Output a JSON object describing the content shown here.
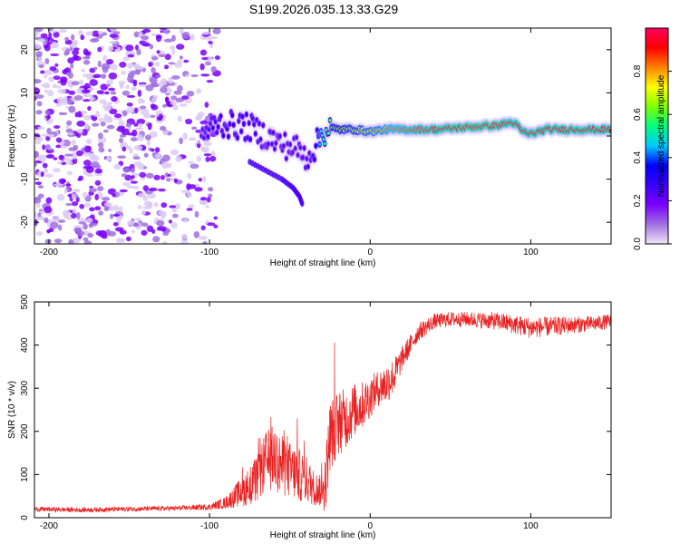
{
  "figure_title": "S199.2026.035.13.33.G29",
  "colors": {
    "snr_line": "#e82020",
    "frame": "#000000",
    "colorbar_stops": [
      "#f0e6f8",
      "#a070e0",
      "#7a00ff",
      "#3a00ff",
      "#0000ff",
      "#00c8ff",
      "#00ff80",
      "#80ff00",
      "#ffff00",
      "#ff8000",
      "#ff0000",
      "#ff0060"
    ]
  },
  "chart_data": [
    {
      "type": "heatmap",
      "name": "spectrogram",
      "title": "",
      "xlabel": "Height of straight line (km)",
      "ylabel": "Frequency (Hz)",
      "xlim": [
        -209,
        150
      ],
      "ylim": [
        -25,
        25
      ],
      "x_ticks": [
        -200,
        -100,
        0,
        100
      ],
      "x_tick_labels": [
        "-200",
        "-100",
        "0",
        "100"
      ],
      "y_ticks": [
        -20,
        -10,
        0,
        10,
        20
      ],
      "y_tick_labels": [
        "-20",
        "-10",
        "0",
        "10",
        "20"
      ],
      "colorbar": {
        "label": "Normalized spectral amplitude",
        "range": [
          0,
          1
        ],
        "ticks": [
          0.0,
          0.2,
          0.4,
          0.6,
          0.8
        ],
        "tick_labels": [
          "0.0",
          "0.2",
          "0.4",
          "0.6",
          "0.8"
        ]
      },
      "ridge": {
        "description": "dominant frequency track",
        "x": [
          -105,
          -95,
          -85,
          -75,
          -65,
          -55,
          -45,
          -40,
          -35,
          -30,
          -25,
          -20,
          -10,
          0,
          10,
          20,
          40,
          60,
          80,
          85,
          90,
          95,
          100,
          110,
          130,
          150
        ],
        "freq": [
          0.0,
          3.0,
          2.5,
          2.0,
          0.0,
          -2.0,
          -3.0,
          -5.0,
          -3.0,
          0.5,
          2.0,
          1.5,
          1.5,
          1.0,
          1.5,
          1.5,
          1.5,
          2.0,
          2.5,
          3.0,
          3.0,
          1.0,
          0.5,
          1.5,
          1.5,
          1.5
        ],
        "amplitude": [
          0.25,
          0.3,
          0.3,
          0.3,
          0.25,
          0.25,
          0.22,
          0.25,
          0.3,
          0.5,
          0.6,
          0.65,
          0.7,
          0.75,
          0.8,
          0.85,
          0.9,
          0.95,
          0.95,
          0.9,
          0.9,
          0.9,
          0.9,
          0.92,
          0.92,
          0.9
        ]
      },
      "tail": {
        "description": "descending branch",
        "x": [
          -75,
          -65,
          -55,
          -48,
          -44,
          -42
        ],
        "freq": [
          -6,
          -8,
          -10,
          -12,
          -14,
          -16
        ]
      },
      "noise_region_x": [
        -209,
        -95
      ]
    },
    {
      "type": "line",
      "name": "snr",
      "title": "",
      "xlabel": "Height of straight line (km)",
      "ylabel": "SNR (10 * v/v)",
      "xlim": [
        -209,
        150
      ],
      "ylim": [
        0,
        500
      ],
      "x_ticks": [
        -200,
        -100,
        0,
        100
      ],
      "x_tick_labels": [
        "-200",
        "-100",
        "0",
        "100"
      ],
      "y_ticks": [
        0,
        100,
        200,
        300,
        400,
        500
      ],
      "y_tick_labels": [
        "0",
        "100",
        "200",
        "300",
        "400",
        "500"
      ],
      "series": [
        {
          "name": "SNR",
          "x": [
            -209,
            -180,
            -150,
            -120,
            -100,
            -90,
            -80,
            -70,
            -65,
            -60,
            -55,
            -50,
            -45,
            -40,
            -35,
            -30,
            -28,
            -25,
            -20,
            -15,
            -10,
            -5,
            0,
            5,
            10,
            15,
            20,
            25,
            30,
            40,
            50,
            60,
            80,
            100,
            120,
            140,
            150
          ],
          "values": [
            20,
            18,
            20,
            22,
            25,
            35,
            60,
            90,
            130,
            140,
            120,
            110,
            100,
            90,
            70,
            60,
            80,
            190,
            220,
            230,
            250,
            260,
            280,
            300,
            310,
            330,
            370,
            400,
            430,
            455,
            460,
            460,
            455,
            440,
            445,
            450,
            455
          ],
          "noise_amp": [
            8,
            8,
            8,
            8,
            10,
            20,
            50,
            80,
            100,
            110,
            100,
            95,
            90,
            80,
            60,
            50,
            100,
            120,
            110,
            100,
            90,
            80,
            70,
            60,
            70,
            60,
            40,
            35,
            30,
            25,
            25,
            25,
            30,
            35,
            30,
            25,
            25
          ]
        }
      ]
    }
  ]
}
